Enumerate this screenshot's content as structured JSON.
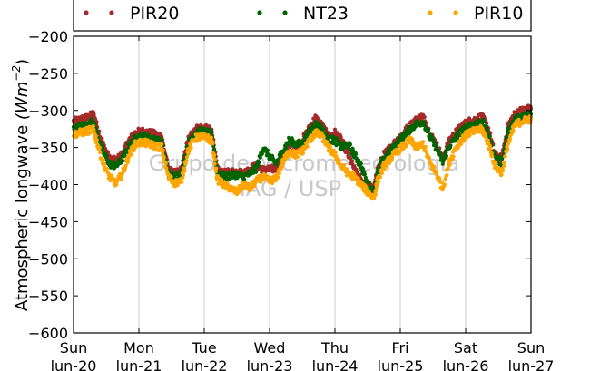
{
  "chart_data": {
    "type": "scatter",
    "title": "",
    "xlabel": "",
    "ylabel": "Atmospheric longwave (Wm⁻²)",
    "ylabel_parts": {
      "main": "Atmospheric longwave ",
      "unit_base": "(Wm",
      "unit_exp": "−2",
      "unit_close": ")"
    },
    "ylim": [
      -600,
      -200
    ],
    "yticks": [
      -600,
      -550,
      -500,
      -450,
      -400,
      -350,
      -300,
      -250,
      -200
    ],
    "xlim": [
      0,
      7
    ],
    "xticks": [
      {
        "day": "Sun",
        "date": "lun-20"
      },
      {
        "day": "Mon",
        "date": "lun-21"
      },
      {
        "day": "Tue",
        "date": "lun-22"
      },
      {
        "day": "Wed",
        "date": "lun-23"
      },
      {
        "day": "Thu",
        "date": "lun-24"
      },
      {
        "day": "Fri",
        "date": "lun-25"
      },
      {
        "day": "Sat",
        "date": "lun-26"
      },
      {
        "day": "Sun",
        "date": "lun-27"
      }
    ],
    "grid": "vertical",
    "legend_position": "top",
    "watermark": [
      "Grupo de Micrometeorologia",
      "IAG / USP"
    ],
    "series": [
      {
        "name": "PIR20",
        "color": "#a52a2a",
        "x": [
          0,
          0.1,
          0.2,
          0.3,
          0.35,
          0.45,
          0.55,
          0.65,
          0.75,
          0.85,
          0.95,
          1.05,
          1.15,
          1.25,
          1.35,
          1.45,
          1.55,
          1.65,
          1.75,
          1.85,
          1.95,
          2.05,
          2.12,
          2.2,
          2.3,
          2.4,
          2.5,
          2.6,
          2.7,
          2.8,
          2.9,
          3.0,
          3.1,
          3.2,
          3.3,
          3.4,
          3.5,
          3.6,
          3.7,
          3.8,
          3.9,
          4.0,
          4.1,
          4.2,
          4.3,
          4.4,
          4.5,
          4.6,
          4.65,
          4.75,
          4.85,
          4.95,
          5.05,
          5.15,
          5.25,
          5.35,
          5.45,
          5.55,
          5.65,
          5.75,
          5.85,
          5.95,
          6.05,
          6.15,
          6.25,
          6.35,
          6.45,
          6.55,
          6.65,
          6.75,
          6.85,
          6.95,
          7.0
        ],
        "y": [
          -315,
          -312,
          -310,
          -305,
          -318,
          -345,
          -365,
          -368,
          -358,
          -340,
          -330,
          -328,
          -330,
          -332,
          -335,
          -380,
          -385,
          -380,
          -340,
          -325,
          -323,
          -325,
          -328,
          -380,
          -385,
          -383,
          -382,
          -385,
          -378,
          -375,
          -380,
          -380,
          -378,
          -360,
          -345,
          -350,
          -340,
          -325,
          -310,
          -320,
          -335,
          -330,
          -340,
          -360,
          -380,
          -395,
          -400,
          -405,
          -380,
          -360,
          -350,
          -340,
          -330,
          -320,
          -312,
          -308,
          -330,
          -345,
          -365,
          -340,
          -330,
          -320,
          -315,
          -312,
          -308,
          -325,
          -360,
          -365,
          -320,
          -305,
          -300,
          -298,
          -298
        ]
      },
      {
        "name": "NT23",
        "color": "#006400",
        "x": [
          0,
          0.1,
          0.2,
          0.3,
          0.35,
          0.45,
          0.55,
          0.65,
          0.75,
          0.85,
          0.95,
          1.05,
          1.15,
          1.25,
          1.35,
          1.45,
          1.55,
          1.65,
          1.75,
          1.85,
          1.95,
          2.05,
          2.12,
          2.2,
          2.3,
          2.4,
          2.5,
          2.6,
          2.7,
          2.8,
          2.9,
          3.0,
          3.1,
          3.2,
          3.3,
          3.4,
          3.5,
          3.6,
          3.7,
          3.8,
          3.9,
          4.0,
          4.1,
          4.2,
          4.3,
          4.4,
          4.5,
          4.6,
          4.65,
          4.75,
          4.85,
          4.95,
          5.05,
          5.15,
          5.25,
          5.35,
          5.45,
          5.55,
          5.65,
          5.75,
          5.85,
          5.95,
          6.05,
          6.15,
          6.25,
          6.35,
          6.45,
          6.55,
          6.65,
          6.75,
          6.85,
          6.95,
          7.0
        ],
        "y": [
          -325,
          -322,
          -320,
          -315,
          -330,
          -355,
          -372,
          -375,
          -365,
          -348,
          -337,
          -335,
          -337,
          -340,
          -343,
          -385,
          -390,
          -385,
          -345,
          -330,
          -328,
          -330,
          -333,
          -385,
          -390,
          -388,
          -386,
          -390,
          -385,
          -378,
          -350,
          -362,
          -372,
          -355,
          -340,
          -345,
          -345,
          -330,
          -318,
          -325,
          -340,
          -340,
          -350,
          -345,
          -360,
          -375,
          -400,
          -410,
          -385,
          -365,
          -355,
          -345,
          -335,
          -325,
          -318,
          -315,
          -335,
          -350,
          -370,
          -348,
          -337,
          -327,
          -322,
          -318,
          -315,
          -332,
          -365,
          -370,
          -330,
          -312,
          -308,
          -305,
          -305
        ]
      },
      {
        "name": "PIR10",
        "color": "#ffa500",
        "x": [
          0,
          0.1,
          0.2,
          0.3,
          0.35,
          0.45,
          0.55,
          0.65,
          0.75,
          0.85,
          0.95,
          1.05,
          1.15,
          1.25,
          1.35,
          1.45,
          1.55,
          1.65,
          1.75,
          1.85,
          1.95,
          2.05,
          2.12,
          2.2,
          2.3,
          2.4,
          2.5,
          2.6,
          2.7,
          2.8,
          2.9,
          3.0,
          3.1,
          3.2,
          3.3,
          3.4,
          3.5,
          3.6,
          3.7,
          3.8,
          3.9,
          4.0,
          4.1,
          4.2,
          4.3,
          4.4,
          4.5,
          4.6,
          4.65,
          4.75,
          4.85,
          4.95,
          5.05,
          5.15,
          5.25,
          5.35,
          5.45,
          5.55,
          5.65,
          5.75,
          5.85,
          5.95,
          6.05,
          6.15,
          6.25,
          6.35,
          6.45,
          6.55,
          6.65,
          6.75,
          6.85,
          6.95,
          7.0
        ],
        "y": [
          -332,
          -330,
          -328,
          -325,
          -340,
          -370,
          -390,
          -398,
          -385,
          -360,
          -345,
          -343,
          -345,
          -348,
          -350,
          -390,
          -398,
          -395,
          -355,
          -338,
          -335,
          -337,
          -342,
          -393,
          -400,
          -405,
          -410,
          -400,
          -405,
          -395,
          -390,
          -395,
          -392,
          -370,
          -355,
          -360,
          -355,
          -342,
          -330,
          -335,
          -350,
          -360,
          -375,
          -385,
          -390,
          -400,
          -410,
          -418,
          -395,
          -375,
          -365,
          -355,
          -348,
          -340,
          -350,
          -345,
          -370,
          -385,
          -405,
          -370,
          -350,
          -338,
          -330,
          -328,
          -325,
          -345,
          -375,
          -385,
          -345,
          -320,
          -315,
          -312,
          -312
        ]
      }
    ]
  }
}
